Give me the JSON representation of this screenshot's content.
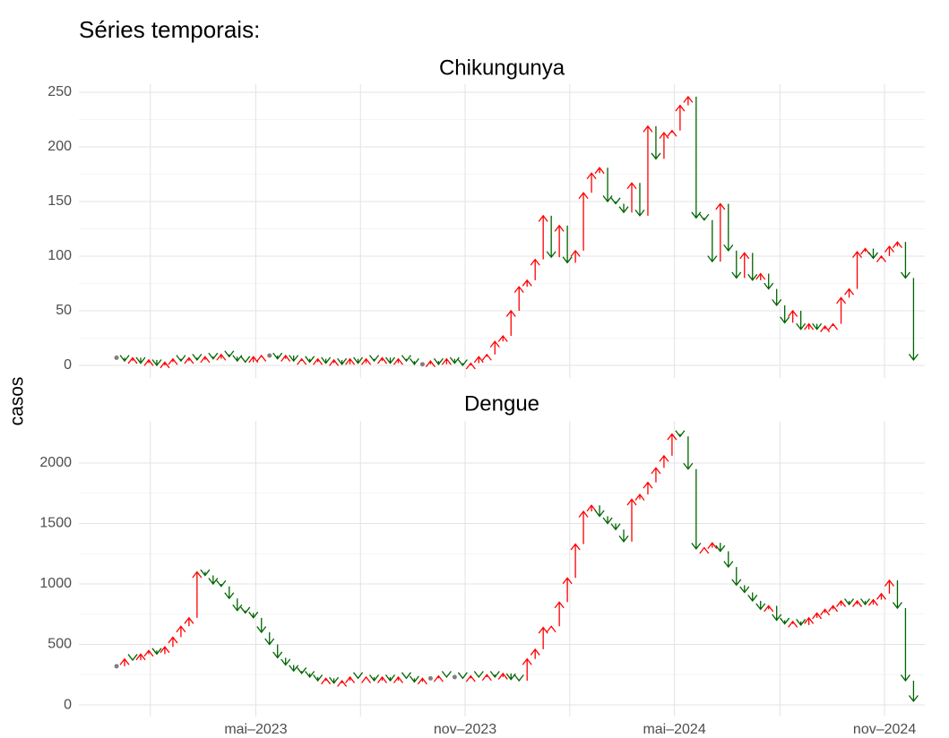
{
  "title": "Séries temporais:",
  "ylabel": "casos",
  "up_color": "#ff0000",
  "down_color": "#006400",
  "flat_color": "#808080",
  "chart_data": [
    {
      "type": "arrow",
      "title": "Chikungunya",
      "categories": [
        null,
        null,
        null,
        null,
        null,
        null,
        null,
        null,
        null,
        null,
        null,
        null,
        null,
        null,
        null,
        null,
        null,
        null,
        null,
        null,
        null,
        null,
        null,
        null,
        null,
        null,
        null,
        null,
        null,
        null,
        null,
        null,
        null,
        null,
        null,
        null,
        null,
        null,
        null,
        null,
        null,
        null,
        null,
        null,
        null,
        null,
        null,
        null,
        null,
        null,
        null,
        null,
        null,
        null,
        null,
        null,
        null,
        null,
        null,
        null,
        null,
        null,
        null,
        null,
        null,
        null,
        null,
        null,
        null,
        null,
        null,
        null,
        null,
        null,
        null,
        null,
        null,
        null,
        null,
        null,
        null,
        null,
        null,
        null,
        null,
        null,
        null,
        null,
        null,
        null,
        null,
        null,
        null,
        null,
        null,
        null,
        null,
        null,
        null,
        null
      ],
      "values": [
        7,
        4,
        7,
        2,
        5,
        0,
        3,
        6,
        4,
        7,
        5,
        8,
        6,
        10,
        8,
        4,
        3,
        8,
        9,
        9,
        6,
        9,
        4,
        6,
        3,
        6,
        2,
        5,
        1,
        6,
        2,
        6,
        4,
        7,
        2,
        6,
        4,
        1,
        1,
        4,
        1,
        6,
        2,
        0,
        2,
        8,
        10,
        22,
        27,
        50,
        72,
        78,
        97,
        137,
        99,
        128,
        94,
        105,
        158,
        176,
        181,
        150,
        148,
        140,
        167,
        137,
        219,
        189,
        213,
        215,
        238,
        246,
        135,
        133,
        95,
        148,
        105,
        80,
        103,
        78,
        84,
        70,
        55,
        39,
        50,
        33,
        38,
        33,
        36,
        38,
        62,
        70,
        104,
        107,
        98,
        100,
        109,
        113,
        80,
        5
      ],
      "xlim": [
        -4.68,
        100.4
      ],
      "xgrid": [
        4.2,
        17.3,
        30.3,
        43.3,
        56.3,
        69.3,
        82.4,
        95.4
      ],
      "ylim": [
        -11.5,
        257.4
      ],
      "yticks": [
        0,
        50,
        100,
        150,
        200,
        250
      ],
      "grid": true
    },
    {
      "type": "arrow",
      "title": "Dengue",
      "categories": [
        null,
        null,
        null,
        null,
        null,
        null,
        null,
        null,
        null,
        null,
        null,
        null,
        null,
        null,
        null,
        null,
        null,
        null,
        null,
        null,
        null,
        null,
        null,
        null,
        null,
        null,
        null,
        null,
        null,
        null,
        null,
        null,
        null,
        null,
        null,
        null,
        null,
        null,
        null,
        null,
        null,
        null,
        null,
        null,
        null,
        null,
        null,
        null,
        null,
        null,
        null,
        null,
        null,
        null,
        null,
        null,
        null,
        null,
        null,
        null,
        null,
        null,
        null,
        null,
        null,
        null,
        null,
        null,
        null,
        null,
        null,
        null,
        null,
        null,
        null,
        null,
        null,
        null,
        null,
        null,
        null,
        null,
        null,
        null,
        null,
        null,
        null,
        null,
        null,
        null,
        null,
        null,
        null,
        null,
        null,
        null,
        null,
        null,
        null,
        null
      ],
      "values": [
        320,
        380,
        370,
        420,
        450,
        420,
        480,
        560,
        650,
        720,
        1100,
        1070,
        1000,
        980,
        880,
        780,
        760,
        720,
        600,
        500,
        390,
        330,
        280,
        260,
        230,
        200,
        220,
        180,
        200,
        230,
        220,
        230,
        200,
        230,
        200,
        230,
        220,
        190,
        220,
        220,
        240,
        230,
        230,
        220,
        240,
        230,
        250,
        230,
        260,
        210,
        200,
        380,
        460,
        640,
        650,
        850,
        1050,
        1330,
        1600,
        1650,
        1560,
        1500,
        1450,
        1350,
        1700,
        1740,
        1840,
        1960,
        2060,
        2240,
        2220,
        1950,
        1290,
        1300,
        1340,
        1270,
        1140,
        990,
        930,
        860,
        790,
        820,
        700,
        670,
        690,
        660,
        720,
        760,
        790,
        820,
        860,
        830,
        860,
        830,
        870,
        920,
        1030,
        800,
        200,
        30
      ],
      "xlim": [
        -4.68,
        100.4
      ],
      "xticks": [
        {
          "value": 17.3,
          "label": "mai–2023"
        },
        {
          "value": 43.3,
          "label": "nov–2023"
        },
        {
          "value": 69.3,
          "label": "mai–2024"
        },
        {
          "value": 95.4,
          "label": "nov–2024"
        }
      ],
      "xminor": [
        4.2,
        30.3,
        56.3,
        82.4
      ],
      "ylim": [
        -96,
        2348
      ],
      "yticks": [
        0,
        500,
        1000,
        1500,
        2000
      ],
      "grid": true
    }
  ]
}
